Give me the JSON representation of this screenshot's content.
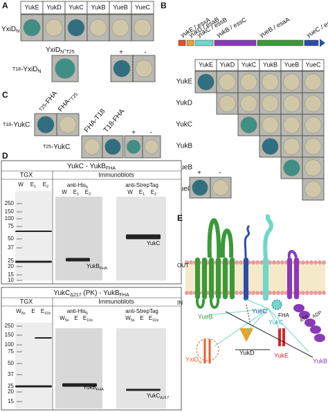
{
  "panel_a": {
    "label": "A",
    "columns": [
      "YukE",
      "YukD",
      "YukC",
      "YukB",
      "YueB",
      "YueC"
    ],
    "row_label": [
      {
        "t": "YxiD"
      },
      {
        "s": "N"
      }
    ],
    "fusion_header": [
      {
        "t": "YxiD"
      },
      {
        "s": "N"
      },
      {
        "t": "-"
      },
      {
        "s": "T25"
      }
    ],
    "fusion_row_label": [
      {
        "s": "T18"
      },
      {
        "t": "-YxiD"
      },
      {
        "s": "N"
      }
    ],
    "controls": [
      "+",
      "-"
    ]
  },
  "panel_b": {
    "label": "B",
    "genes": [
      "yukE / esxA",
      "yukD / esaB",
      "yukC / essB",
      "yukB / essC",
      "yueB / esaA",
      "yueC / esxB"
    ],
    "columns": [
      "YukE",
      "YukD",
      "YukC",
      "YukB",
      "YueB",
      "YueC"
    ],
    "rows": [
      "YukE",
      "YukD",
      "YukC",
      "YukB",
      "YueB",
      "YueC"
    ],
    "controls": [
      "+",
      "-"
    ]
  },
  "panel_c": {
    "label": "C",
    "row1_columns": [
      [
        {
          "s": "T25"
        },
        {
          "t": "-FHA"
        }
      ],
      [
        {
          "t": "FHA-"
        },
        {
          "s": "T25"
        }
      ]
    ],
    "row1_label": [
      {
        "s": "T18"
      },
      {
        "t": "-YukC"
      }
    ],
    "row2_columns": [
      "FHA-T18",
      "T18-FHA"
    ],
    "row2_label": [
      {
        "s": "T25"
      },
      {
        "t": "-YukC"
      }
    ],
    "controls": [
      "+",
      "-"
    ]
  },
  "panel_d": {
    "label": "D",
    "blots": [
      {
        "title": [
          {
            "t": "YukC - YukB"
          },
          {
            "s": "FHA"
          }
        ],
        "gel": "TGX",
        "immuno": "Immunoblots",
        "lanes": [
          "W",
          [
            {
              "t": "E"
            },
            {
              "s": "1"
            }
          ],
          [
            {
              "t": "E"
            },
            {
              "s": "2"
            }
          ]
        ],
        "antibodies": [
          [
            {
              "t": "anti-His"
            },
            {
              "s": "6"
            }
          ],
          "anti-StrepTag"
        ],
        "markers": [
          250,
          150,
          100,
          75,
          50,
          37,
          25,
          20,
          15,
          10
        ],
        "band_labels": [
          [
            {
              "t": "YukB"
            },
            {
              "s": "FHA"
            }
          ],
          "YukC"
        ]
      },
      {
        "title": [
          {
            "t": "YukC"
          },
          {
            "s": "Δ217"
          },
          {
            "t": " (PK) - YukB"
          },
          {
            "s": "FHA"
          }
        ],
        "gel": "TGX",
        "immuno": "Immunoblots",
        "lanes": [
          [
            {
              "t": "W"
            },
            {
              "s": "5x"
            }
          ],
          "E",
          [
            {
              "t": "E"
            },
            {
              "s": "10x"
            }
          ]
        ],
        "antibodies": [
          [
            {
              "t": "anti-His"
            },
            {
              "s": "6"
            }
          ],
          "anti-StrepTag"
        ],
        "markers": [
          250,
          150,
          100,
          75,
          50,
          37,
          25,
          20,
          15
        ],
        "band_labels": [
          [
            {
              "t": "YukB"
            },
            {
              "s": "FHA"
            }
          ],
          [
            {
              "t": "YukC"
            },
            {
              "s": "Δ217"
            }
          ]
        ]
      }
    ]
  },
  "panel_e": {
    "label": "E",
    "out": "OUT",
    "in": "IN",
    "yueb": "YueB",
    "yuec": "YueC",
    "fha": "FHA",
    "yukc": "YukC",
    "atp": "ATP",
    "adp": "ADP",
    "yukb": "YukB",
    "yukd": "YukD",
    "yuke": "YukE",
    "yxid": [
      {
        "t": "YxiD"
      },
      {
        "s": "N"
      }
    ]
  }
}
